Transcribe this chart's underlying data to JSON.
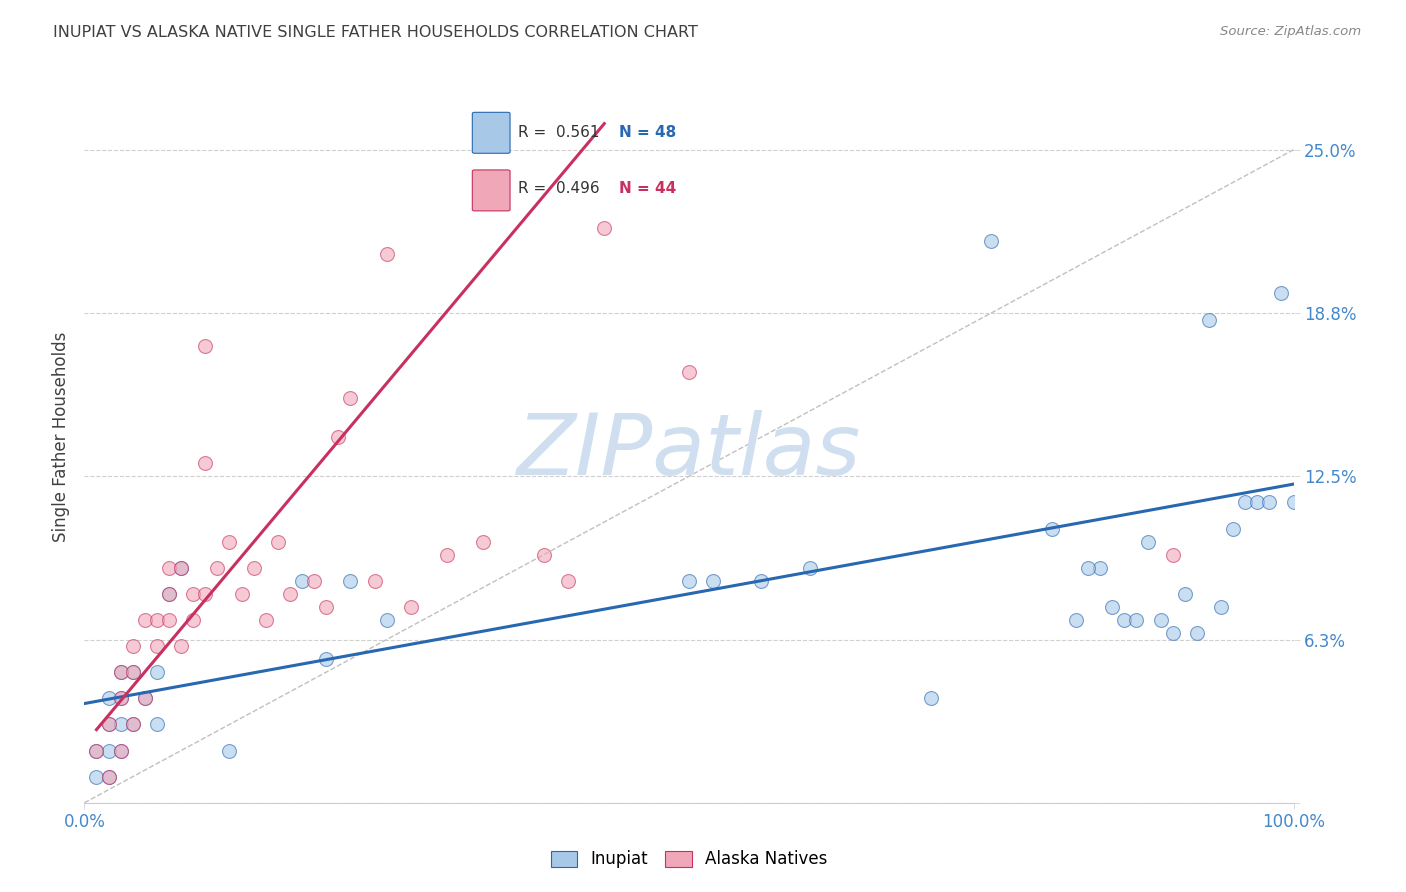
{
  "title": "INUPIAT VS ALASKA NATIVE SINGLE FATHER HOUSEHOLDS CORRELATION CHART",
  "source": "Source: ZipAtlas.com",
  "ylabel": "Single Father Households",
  "watermark": "ZIPatlas",
  "legend_blue_r": "0.561",
  "legend_blue_n": "48",
  "legend_pink_r": "0.496",
  "legend_pink_n": "44",
  "xlim": [
    0,
    1.0
  ],
  "ylim": [
    0,
    0.28
  ],
  "xticks": [
    0.0,
    1.0
  ],
  "xtick_labels": [
    "0.0%",
    "100.0%"
  ],
  "ytick_values": [
    0.0,
    0.0625,
    0.125,
    0.1875,
    0.25
  ],
  "ytick_labels": [
    "",
    "6.3%",
    "12.5%",
    "18.8%",
    "25.0%"
  ],
  "blue_scatter_x": [
    0.01,
    0.01,
    0.02,
    0.02,
    0.02,
    0.02,
    0.03,
    0.03,
    0.03,
    0.03,
    0.04,
    0.04,
    0.05,
    0.06,
    0.06,
    0.07,
    0.08,
    0.12,
    0.18,
    0.2,
    0.22,
    0.25,
    0.5,
    0.52,
    0.56,
    0.75,
    0.82,
    0.84,
    0.85,
    0.86,
    0.87,
    0.88,
    0.9,
    0.91,
    0.92,
    0.93,
    0.94,
    0.95,
    0.96,
    0.97,
    0.98,
    0.99,
    1.0,
    0.7,
    0.6,
    0.8,
    0.83,
    0.89
  ],
  "blue_scatter_y": [
    0.01,
    0.02,
    0.01,
    0.02,
    0.03,
    0.04,
    0.02,
    0.03,
    0.04,
    0.05,
    0.03,
    0.05,
    0.04,
    0.03,
    0.05,
    0.08,
    0.09,
    0.02,
    0.085,
    0.055,
    0.085,
    0.07,
    0.085,
    0.085,
    0.085,
    0.215,
    0.07,
    0.09,
    0.075,
    0.07,
    0.07,
    0.1,
    0.065,
    0.08,
    0.065,
    0.185,
    0.075,
    0.105,
    0.115,
    0.115,
    0.115,
    0.195,
    0.115,
    0.04,
    0.09,
    0.105,
    0.09,
    0.07
  ],
  "pink_scatter_x": [
    0.01,
    0.02,
    0.02,
    0.03,
    0.03,
    0.03,
    0.04,
    0.04,
    0.04,
    0.05,
    0.05,
    0.06,
    0.06,
    0.07,
    0.07,
    0.07,
    0.08,
    0.08,
    0.09,
    0.09,
    0.1,
    0.1,
    0.11,
    0.12,
    0.13,
    0.14,
    0.15,
    0.16,
    0.17,
    0.19,
    0.2,
    0.21,
    0.22,
    0.24,
    0.25,
    0.27,
    0.3,
    0.33,
    0.38,
    0.4,
    0.43,
    0.5,
    0.9,
    0.1
  ],
  "pink_scatter_y": [
    0.02,
    0.01,
    0.03,
    0.04,
    0.02,
    0.05,
    0.03,
    0.06,
    0.05,
    0.07,
    0.04,
    0.06,
    0.07,
    0.08,
    0.07,
    0.09,
    0.06,
    0.09,
    0.07,
    0.08,
    0.08,
    0.13,
    0.09,
    0.1,
    0.08,
    0.09,
    0.07,
    0.1,
    0.08,
    0.085,
    0.075,
    0.14,
    0.155,
    0.085,
    0.21,
    0.075,
    0.095,
    0.1,
    0.095,
    0.085,
    0.22,
    0.165,
    0.095,
    0.175
  ],
  "blue_line_x": [
    0.0,
    1.0
  ],
  "blue_line_y": [
    0.038,
    0.122
  ],
  "pink_line_x": [
    0.01,
    0.43
  ],
  "pink_line_y": [
    0.028,
    0.26
  ],
  "diagonal_line_x": [
    0.0,
    1.0
  ],
  "diagonal_line_y": [
    0.0,
    0.25
  ],
  "background_color": "#ffffff",
  "blue_color": "#a8c8e8",
  "pink_color": "#f0a8b8",
  "blue_line_color": "#2868b0",
  "pink_line_color": "#c83060",
  "diagonal_color": "#c0c0c0",
  "grid_color": "#d0d0d0",
  "title_color": "#404040",
  "ytick_color": "#4488cc",
  "xtick_color": "#4488cc",
  "source_color": "#888888",
  "watermark_color": "#d0dff0"
}
